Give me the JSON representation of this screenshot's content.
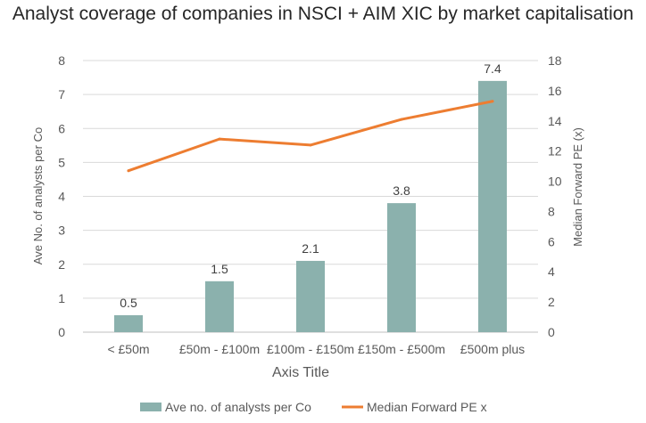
{
  "chart_data": {
    "type": "bar",
    "title": "Analyst coverage of companies in NSCI + AIM XIC by market capitalisation",
    "categories": [
      "< £50m",
      "£50m - £100m",
      "£100m - £150m",
      "£150m - £500m",
      "£500m plus"
    ],
    "xlabel": "Axis Title",
    "ylabel": "Ave No. of analysts per Co",
    "y2label": "Median Forward  PE  (x)",
    "ylim": [
      0,
      8
    ],
    "y2lim": [
      0,
      18
    ],
    "yticks": [
      "0",
      "1",
      "2",
      "3",
      "4",
      "5",
      "6",
      "7",
      "8"
    ],
    "y2ticks": [
      "0",
      "2",
      "4",
      "6",
      "8",
      "10",
      "12",
      "14",
      "16",
      "18"
    ],
    "grid": true,
    "legend_position": "bottom",
    "series": [
      {
        "name": "Ave no. of analysts per Co",
        "type": "bar",
        "axis": "left",
        "color": "#8BB1AD",
        "values": [
          0.5,
          1.5,
          2.1,
          3.8,
          7.4
        ],
        "labels": [
          "0.5",
          "1.5",
          "2.1",
          "3.8",
          "7.4"
        ]
      },
      {
        "name": "Median Forward PE x",
        "type": "line",
        "axis": "right",
        "color": "#ED7D31",
        "values": [
          10.7,
          12.8,
          12.4,
          14.1,
          15.3
        ]
      }
    ]
  }
}
